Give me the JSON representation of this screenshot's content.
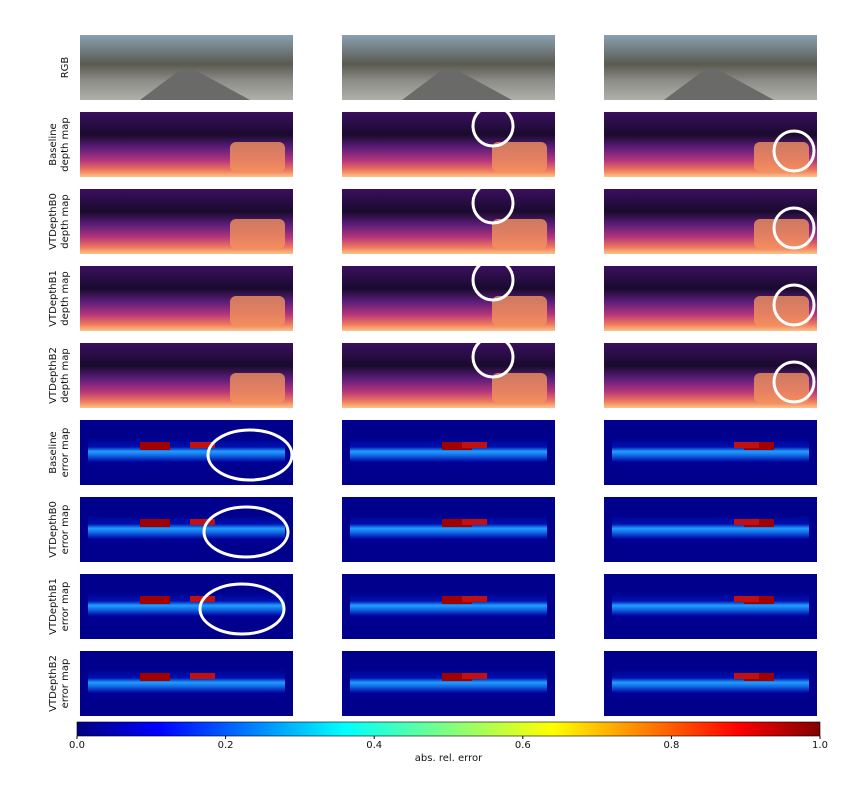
{
  "figure": {
    "rows": [
      {
        "kind": "rgb",
        "label": [
          "RGB"
        ]
      },
      {
        "kind": "depth",
        "label": [
          "Baseline",
          "depth map"
        ]
      },
      {
        "kind": "depth",
        "label": [
          "VTDepthB0",
          "depth map"
        ]
      },
      {
        "kind": "depth",
        "label": [
          "VTDepthB1",
          "depth map"
        ]
      },
      {
        "kind": "depth",
        "label": [
          "VTDepthB2",
          "depth map"
        ]
      },
      {
        "kind": "error",
        "label": [
          "Baseline",
          "error map"
        ]
      },
      {
        "kind": "error",
        "label": [
          "VTDepthB0",
          "error map"
        ]
      },
      {
        "kind": "error",
        "label": [
          "VTDepthB1",
          "error map"
        ]
      },
      {
        "kind": "error",
        "label": [
          "VTDepthB2",
          "error map"
        ]
      }
    ],
    "colorbar": {
      "label": "abs. rel. error",
      "lim": [
        0,
        1
      ],
      "ticks": [
        {
          "value": 0,
          "label": "0.0"
        },
        {
          "value": 0.2,
          "label": "0.2"
        },
        {
          "value": 0.4,
          "label": "0.4"
        },
        {
          "value": 0.6,
          "label": "0.6"
        },
        {
          "value": 0.8,
          "label": "0.8"
        },
        {
          "value": 1,
          "label": "1.0"
        }
      ]
    }
  }
}
